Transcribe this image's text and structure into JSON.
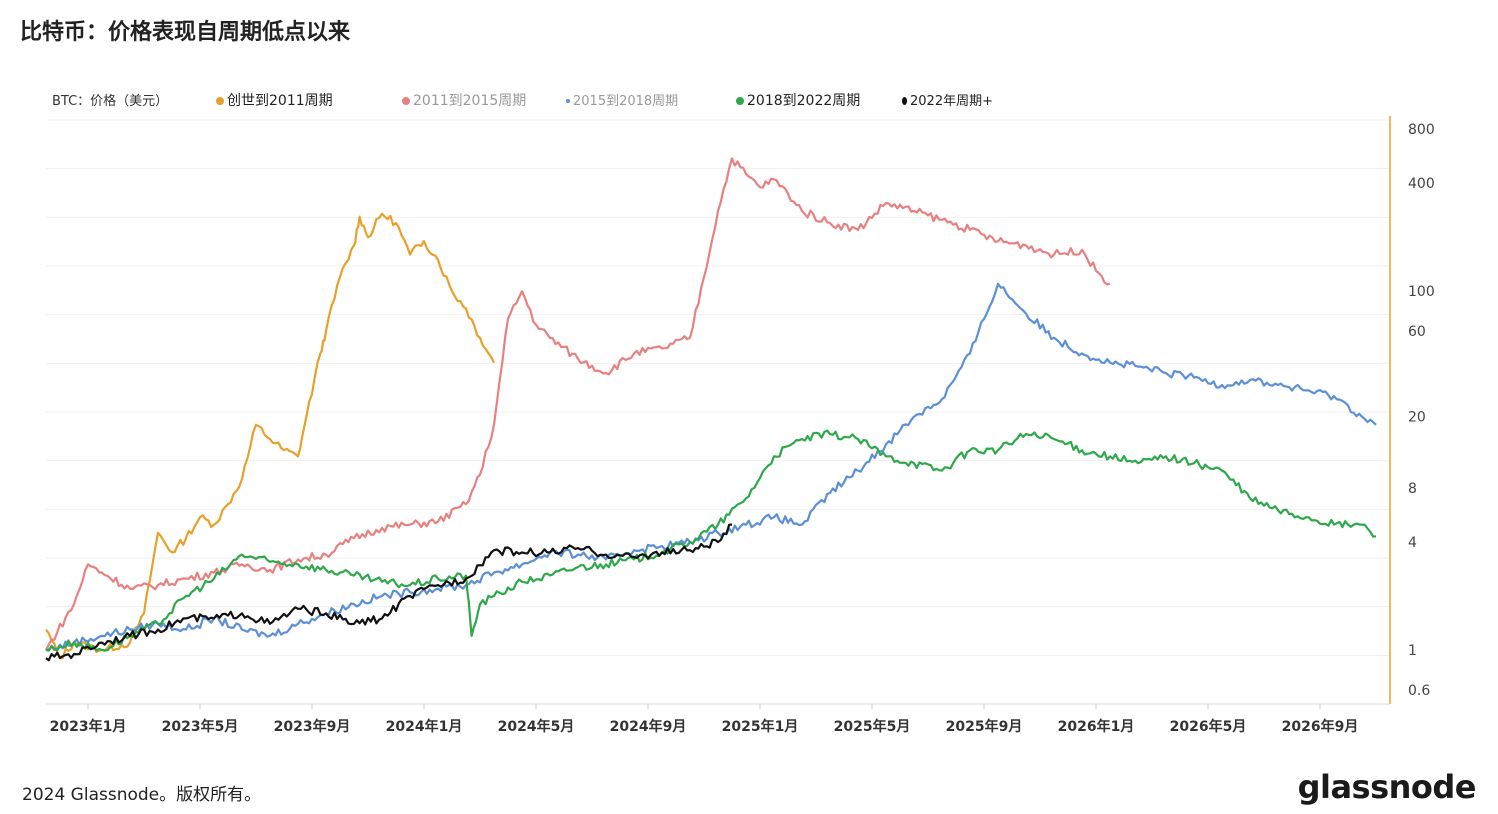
{
  "header": {
    "title": "比特币：价格表现自周期低点以来"
  },
  "legend": {
    "ylabel": "BTC：价格（美元）",
    "items": [
      {
        "label": "创世到2011周期",
        "color": "#e8a02a"
      },
      {
        "label": "2011到2015周期",
        "color": "#e88080"
      },
      {
        "label": "2015到2018周期",
        "color": "#5b8fd8"
      },
      {
        "label": "2018到2022周期",
        "color": "#2ea84a"
      },
      {
        "label": "2022年周期+",
        "color": "#111111"
      }
    ]
  },
  "chart_data": {
    "type": "line",
    "ylabel": "BTC：价格（美元）",
    "yscale": "log",
    "ylim": [
      0.5,
      900
    ],
    "y_ticks": [
      0.6,
      1,
      4,
      8,
      20,
      60,
      100,
      400,
      800
    ],
    "x_ticks": [
      "2023年1月",
      "2023年5月",
      "2023年9月",
      "2024年1月",
      "2024年5月",
      "2024年9月",
      "2025年1月",
      "2025年5月",
      "2025年9月",
      "2026年1月",
      "2026年5月",
      "2026年9月"
    ],
    "x_tick_index": [
      0.5,
      4.5,
      8.5,
      12.5,
      16.5,
      20.5,
      24.5,
      28.5,
      32.5,
      36.5,
      40.5,
      44.5
    ],
    "xlim": [
      -1,
      47
    ],
    "grid": true,
    "series": [
      {
        "name": "创世到2011周期",
        "color": "#e8a02a",
        "x": [
          -1,
          -0.5,
          0,
          1,
          2,
          2.5,
          3,
          3.5,
          4,
          4.5,
          5,
          5.5,
          6,
          6.5,
          7,
          7.5,
          8,
          8.3,
          8.8,
          9,
          9.5,
          10,
          10.2,
          10.5,
          11,
          11.5,
          12,
          12.5,
          13,
          13.5,
          14,
          14.5,
          15
        ],
        "y": [
          1.3,
          0.9,
          1.1,
          1.0,
          1.1,
          1.6,
          4.5,
          3.5,
          4.2,
          5.5,
          5.0,
          6.5,
          9.0,
          18,
          15,
          13,
          12,
          20,
          45,
          60,
          120,
          180,
          260,
          200,
          270,
          240,
          160,
          190,
          150,
          100,
          80,
          55,
          40
        ]
      },
      {
        "name": "2011到2015周期",
        "color": "#e88080",
        "x": [
          -1,
          0,
          0.5,
          1,
          2,
          3,
          4,
          5,
          6,
          7,
          8,
          9,
          10,
          11,
          12,
          13,
          14,
          14.5,
          15,
          15.5,
          16,
          16.5,
          17,
          18,
          19,
          20,
          21,
          22,
          22.5,
          23,
          23.5,
          24,
          24.5,
          25,
          25.5,
          26,
          27,
          28,
          29,
          30,
          31,
          32,
          33,
          34,
          35,
          36,
          36.5,
          37
        ],
        "y": [
          1.0,
          1.8,
          3.0,
          2.7,
          2.2,
          2.3,
          2.5,
          2.7,
          3.0,
          2.8,
          3.2,
          3.4,
          4.2,
          4.8,
          5.0,
          5.2,
          6.5,
          9.5,
          18,
          70,
          100,
          65,
          55,
          42,
          35,
          45,
          48,
          55,
          120,
          280,
          550,
          450,
          380,
          420,
          350,
          280,
          240,
          220,
          310,
          280,
          250,
          220,
          190,
          180,
          160,
          170,
          130,
          110
        ]
      },
      {
        "name": "2015到2018周期",
        "color": "#5b8fd8",
        "x": [
          -1,
          0,
          1,
          2,
          3,
          4,
          5,
          6,
          7,
          8,
          9,
          10,
          11,
          12,
          13,
          14,
          15,
          16,
          17,
          18,
          19,
          20,
          21,
          22,
          23,
          24,
          25,
          26,
          27,
          28,
          29,
          30,
          31,
          32,
          32.5,
          33,
          34,
          35,
          36,
          37,
          38,
          39,
          40,
          41,
          42,
          43,
          44,
          45,
          46,
          46.5
        ],
        "y": [
          1.0,
          1.1,
          1.2,
          1.3,
          1.4,
          1.3,
          1.5,
          1.3,
          1.2,
          1.4,
          1.6,
          1.8,
          2.0,
          2.1,
          2.2,
          2.3,
          2.7,
          3.0,
          3.5,
          3.4,
          3.2,
          3.6,
          3.8,
          4.0,
          4.5,
          5.0,
          5.5,
          5.0,
          7.5,
          10,
          14,
          20,
          25,
          45,
          70,
          110,
          75,
          55,
          45,
          40,
          38,
          35,
          33,
          30,
          32,
          30,
          28,
          26,
          20,
          18
        ]
      },
      {
        "name": "2018到2022周期",
        "color": "#2ea84a",
        "x": [
          -1,
          0,
          1,
          2,
          3,
          4,
          5,
          6,
          7,
          8,
          9,
          10,
          11,
          12,
          13,
          14,
          14.2,
          14.5,
          15,
          16,
          17,
          18,
          19,
          20,
          21,
          22,
          23,
          24,
          25,
          26,
          27,
          28,
          29,
          30,
          31,
          32,
          33,
          34,
          35,
          36,
          37,
          38,
          39,
          40,
          41,
          42,
          43,
          44,
          45,
          46,
          46.5
        ],
        "y": [
          1.0,
          1.1,
          1.0,
          1.2,
          1.4,
          2.0,
          2.5,
          3.4,
          3.1,
          3.0,
          2.8,
          2.6,
          2.4,
          2.3,
          2.5,
          2.6,
          1.2,
          1.8,
          2.0,
          2.4,
          2.6,
          2.9,
          3.0,
          3.2,
          3.5,
          4.0,
          5.0,
          7.0,
          12,
          15,
          16,
          15,
          12,
          11,
          10,
          13,
          13,
          16,
          15,
          13,
          12,
          11,
          12,
          11,
          10,
          7,
          6,
          5.5,
          5.0,
          5.0,
          4.3
        ]
      },
      {
        "name": "2022年周期+",
        "color": "#111111",
        "x": [
          -1,
          0,
          1,
          2,
          3,
          4,
          5,
          6,
          7,
          8,
          9,
          10,
          11,
          12,
          13,
          14,
          15,
          16,
          17,
          18,
          19,
          20,
          21,
          22,
          23,
          23.5
        ],
        "y": [
          0.9,
          0.95,
          1.1,
          1.2,
          1.3,
          1.5,
          1.5,
          1.6,
          1.4,
          1.7,
          1.6,
          1.4,
          1.5,
          2.0,
          2.3,
          2.5,
          3.6,
          3.5,
          3.5,
          3.7,
          3.4,
          3.3,
          3.5,
          3.6,
          4.0,
          5.0
        ]
      }
    ]
  },
  "footer": {
    "copyright": "2024 Glassnode。版权所有。",
    "brand": "glassnode"
  }
}
